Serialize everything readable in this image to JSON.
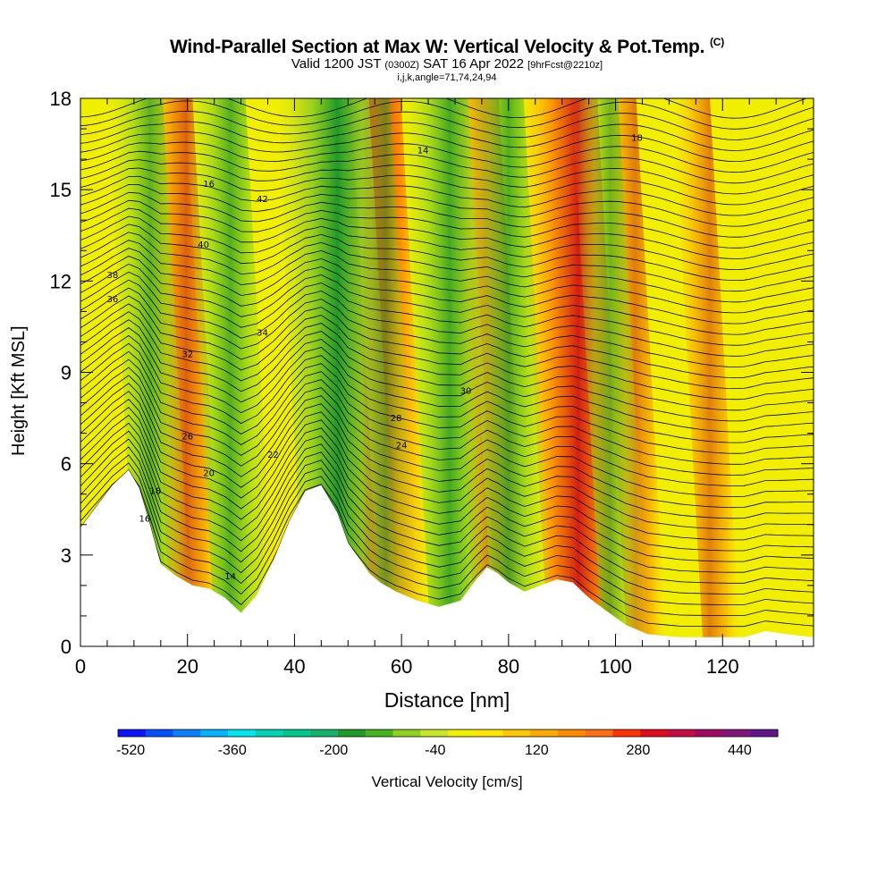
{
  "chart_data": {
    "type": "heatmap",
    "title": "Wind-Parallel Section at Max W: Vertical Velocity & Pot.Temp.",
    "title_mark": "(C)",
    "subtitle_main": "Valid 1200 JST",
    "subtitle_z": "(0300Z)",
    "subtitle_date": "SAT 16 Apr 2022",
    "subtitle_fcst": "[9hrFcst@2210z]",
    "subtitle2": "i,j,k,angle=71,74,24,94",
    "xlabel": "Distance [nm]",
    "ylabel": "Height [Kft MSL]",
    "xlim": [
      0,
      137
    ],
    "ylim": [
      0,
      18
    ],
    "x_ticks": [
      "0",
      "20",
      "40",
      "60",
      "80",
      "100",
      "120"
    ],
    "x_tick_values": [
      0,
      20,
      40,
      60,
      80,
      100,
      120
    ],
    "y_ticks": [
      "0",
      "3",
      "6",
      "9",
      "12",
      "15",
      "18"
    ],
    "y_tick_values": [
      0,
      3,
      6,
      9,
      12,
      15,
      18
    ],
    "colorbar_label": "Vertical Velocity [cm/s]",
    "colorbar_ticks": [
      "-520",
      "-360",
      "-200",
      "-40",
      "120",
      "280",
      "440"
    ],
    "colorbar_tick_values": [
      -520,
      -360,
      -200,
      -40,
      120,
      280,
      440
    ],
    "colorbar_range": [
      -540,
      500
    ],
    "colorbar_colors": [
      "#0a14ff",
      "#0050ff",
      "#0a82ff",
      "#00b4ff",
      "#00e6f0",
      "#00d2b4",
      "#00c88c",
      "#14b46e",
      "#1e9b28",
      "#46b41e",
      "#8cd21e",
      "#c8e628",
      "#f0f000",
      "#ffe600",
      "#ffc800",
      "#ffaa00",
      "#ff8c00",
      "#ff6e14",
      "#ff3200",
      "#e60a1e",
      "#c80a46",
      "#a00a64",
      "#82147d",
      "#64148c"
    ],
    "theta_contour_labels": [
      "14",
      "16",
      "18",
      "20",
      "22",
      "24",
      "26",
      "28",
      "30",
      "32",
      "34",
      "36",
      "38",
      "40",
      "42"
    ],
    "terrain": [
      [
        0,
        3.9
      ],
      [
        3,
        4.6
      ],
      [
        6,
        5.3
      ],
      [
        9,
        5.8
      ],
      [
        11,
        5.2
      ],
      [
        13,
        4
      ],
      [
        15,
        2.7
      ],
      [
        18,
        2.3
      ],
      [
        21,
        2
      ],
      [
        24,
        1.9
      ],
      [
        27,
        1.6
      ],
      [
        30,
        1.1
      ],
      [
        33,
        1.7
      ],
      [
        36,
        2.8
      ],
      [
        39,
        4.1
      ],
      [
        42,
        5.1
      ],
      [
        45,
        5.3
      ],
      [
        48,
        4.4
      ],
      [
        50,
        3.4
      ],
      [
        52,
        2.9
      ],
      [
        54,
        2.4
      ],
      [
        56,
        2.1
      ],
      [
        59,
        1.8
      ],
      [
        63,
        1.5
      ],
      [
        67,
        1.3
      ],
      [
        71,
        1.5
      ],
      [
        74,
        2.2
      ],
      [
        76,
        2.6
      ],
      [
        78,
        2.4
      ],
      [
        80,
        2.1
      ],
      [
        83,
        1.8
      ],
      [
        86,
        2.0
      ],
      [
        89,
        2.2
      ],
      [
        92,
        2.1
      ],
      [
        95,
        1.6
      ],
      [
        98,
        1.2
      ],
      [
        102,
        0.7
      ],
      [
        106,
        0.4
      ],
      [
        112,
        0.3
      ],
      [
        118,
        0.3
      ],
      [
        124,
        0.3
      ],
      [
        128,
        0.5
      ],
      [
        132,
        0.4
      ],
      [
        137,
        0.3
      ]
    ],
    "updraft_cores": [
      [
        19,
        0.8
      ],
      [
        52,
        3.5
      ],
      [
        76,
        0.9
      ],
      [
        92,
        2.0
      ],
      [
        103,
        0.3
      ],
      [
        117,
        0.2
      ]
    ],
    "downdraft_cores": [
      [
        13,
        -1.0
      ],
      [
        28,
        -1.2
      ],
      [
        48,
        -2.6
      ],
      [
        57,
        -0.3
      ],
      [
        69,
        -1.5
      ],
      [
        80,
        -1.2
      ],
      [
        99,
        -0.6
      ]
    ]
  }
}
